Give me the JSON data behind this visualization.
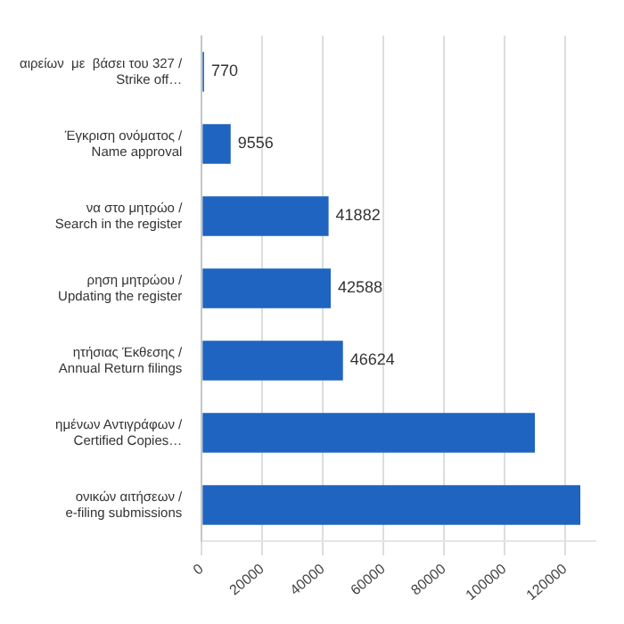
{
  "chart_data": {
    "type": "bar",
    "orientation": "horizontal",
    "categories": [
      "αιρείων  με  βάσει του 327 /Strike off…",
      "Έγκριση ονόματος / Name approval",
      "να στο μητρώο / Search in the register",
      "ρηση μητρώου / Updating the register",
      "ητήσιας Έκθεσης / Annual Return filings",
      "ημένων Αντιγράφων / Certified Copies…",
      "ονικών αιτήσεων / e-filing submissions"
    ],
    "values": [
      770,
      9556,
      41882,
      42588,
      46624,
      110000,
      125000
    ],
    "value_labels": [
      "770",
      "9556",
      "41882",
      "42588",
      "46624",
      null,
      null
    ],
    "color": "#1f64c0",
    "xlim": [
      0,
      130000
    ],
    "xticks": [
      0,
      20000,
      40000,
      60000,
      80000,
      100000,
      120000
    ],
    "grid": "x"
  }
}
